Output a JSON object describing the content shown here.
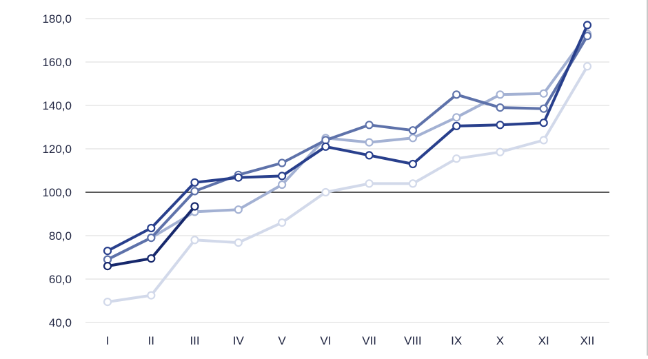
{
  "chart_data": {
    "type": "line",
    "title": "",
    "xlabel": "",
    "ylabel": "",
    "categories": [
      "I",
      "II",
      "III",
      "IV",
      "V",
      "VI",
      "VII",
      "VIII",
      "IX",
      "X",
      "XI",
      "XII"
    ],
    "ylim": [
      40,
      180
    ],
    "yticks": [
      "40,0",
      "60,0",
      "80,0",
      "100,0",
      "120,0",
      "140,0",
      "160,0",
      "180,0"
    ],
    "ytick_values": [
      40,
      60,
      80,
      100,
      120,
      140,
      160,
      180
    ],
    "reference_line": 100,
    "grid": true,
    "legend": "none",
    "series": [
      {
        "color": "#d2d9ea",
        "values": [
          49.5,
          52.5,
          78,
          76.8,
          86,
          100,
          104,
          104,
          115.5,
          118.5,
          124,
          158
        ]
      },
      {
        "color": "#a3b1d3",
        "values": [
          69,
          79,
          91,
          92,
          103.5,
          125,
          123,
          125,
          134.5,
          145,
          145.5,
          173
        ]
      },
      {
        "color": "#5e72aa",
        "values": [
          69,
          79,
          100.5,
          108,
          113.5,
          124,
          131,
          128.5,
          145,
          139,
          138.5,
          172
        ]
      },
      {
        "color": "#283f8c",
        "values": [
          73,
          83.5,
          104.5,
          106.8,
          107.5,
          121,
          117,
          113,
          130.5,
          131,
          132,
          177
        ]
      },
      {
        "color": "#16286c",
        "values": [
          66,
          69.5,
          93.5,
          null,
          null,
          null,
          null,
          null,
          null,
          null,
          null,
          null
        ]
      }
    ]
  }
}
